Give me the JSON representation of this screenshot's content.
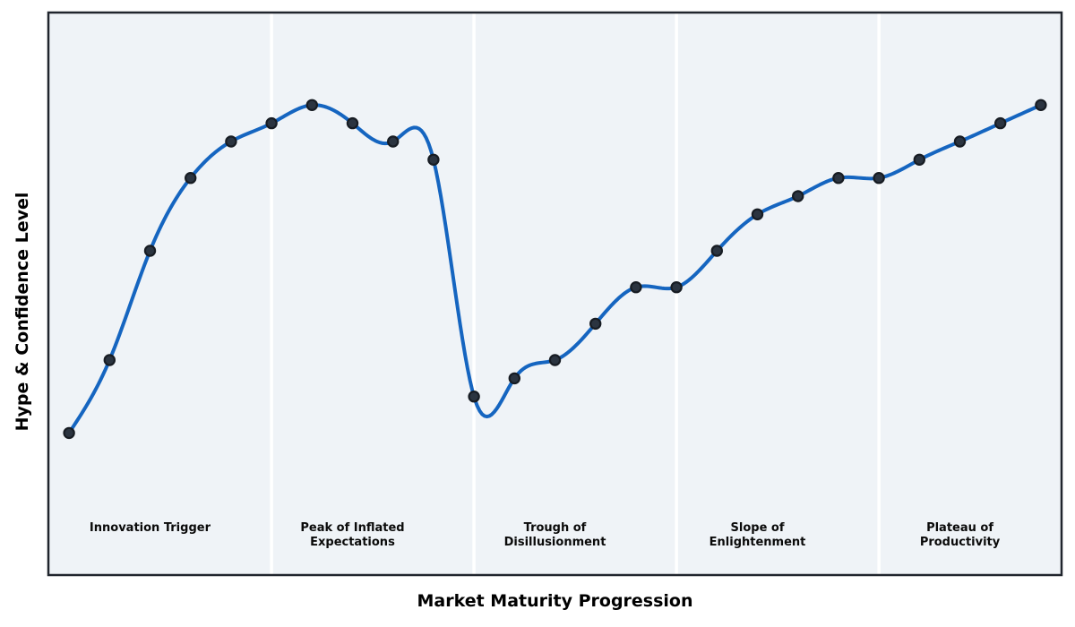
{
  "figure": {
    "background": "#ffffff",
    "plot_background": "#eff3f7",
    "border_color": "#20252d",
    "divider_color": "#ffffff"
  },
  "chart_data": {
    "type": "line",
    "title": "",
    "xlabel": "Market Maturity Progression",
    "ylabel": "Hype & Confidence Level",
    "x": [
      0,
      1,
      2,
      3,
      4,
      5,
      6,
      7,
      8,
      9,
      10,
      11,
      12,
      13,
      14,
      15,
      16,
      17,
      18,
      19,
      20,
      21,
      22,
      23,
      24
    ],
    "series": [
      {
        "name": "Hype & Confidence Level",
        "values": [
          10,
          30,
          60,
          80,
          90,
          95,
          100,
          95,
          90,
          85,
          20,
          25,
          30,
          40,
          50,
          50,
          60,
          70,
          75,
          80,
          80,
          85,
          90,
          95,
          100
        ]
      }
    ],
    "xlim": [
      -0.51,
      24.51
    ],
    "ylim": [
      -29.0,
      125.4
    ],
    "grid": false,
    "legend_position": "none",
    "smoothing": "cubic-spline",
    "line_color": "#1565c0",
    "line_width": 4,
    "marker": {
      "shape": "circle",
      "fill": "#2b3440",
      "edge": "#171c23",
      "radius": 5.6,
      "edge_width": 2.2
    },
    "phase_boundaries_x": [
      5,
      10,
      15,
      20
    ],
    "phases": [
      {
        "label_lines": [
          "Innovation Trigger"
        ],
        "label_x": 2
      },
      {
        "label_lines": [
          "Peak of Inflated",
          "Expectations"
        ],
        "label_x": 7
      },
      {
        "label_lines": [
          "Trough of",
          "Disillusionment"
        ],
        "label_x": 12
      },
      {
        "label_lines": [
          "Slope of",
          "Enlightenment"
        ],
        "label_x": 17
      },
      {
        "label_lines": [
          "Plateau of",
          "Productivity"
        ],
        "label_x": 22
      }
    ]
  }
}
